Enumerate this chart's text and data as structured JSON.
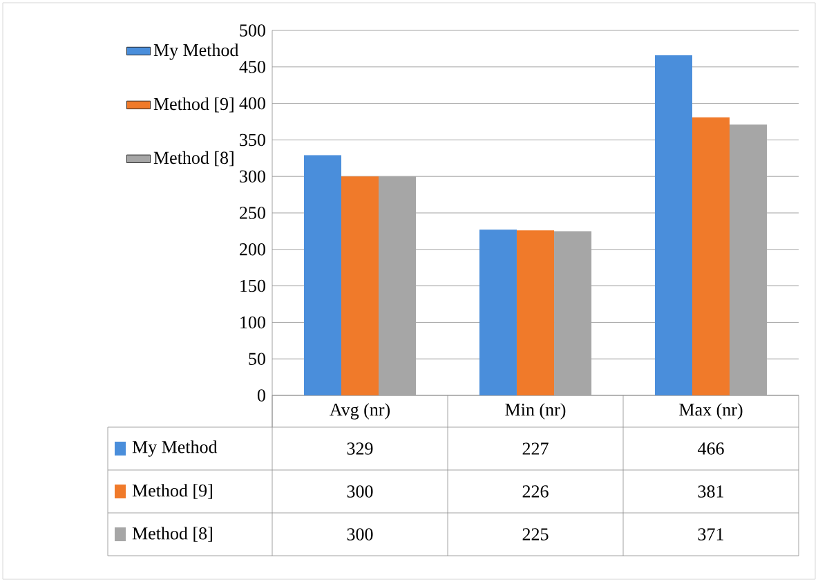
{
  "chart_data": {
    "type": "bar",
    "categories": [
      "Avg (nr)",
      "Min (nr)",
      "Max (nr)"
    ],
    "series": [
      {
        "name": "My Method",
        "color": "#4a8edb",
        "values": [
          329,
          227,
          466
        ]
      },
      {
        "name": "Method [9]",
        "color": "#f07a2a",
        "values": [
          300,
          226,
          381
        ]
      },
      {
        "name": "Method [8]",
        "color": "#a6a6a6",
        "values": [
          300,
          225,
          371
        ]
      }
    ],
    "ylim": [
      0,
      500
    ],
    "yticks": [
      0,
      50,
      100,
      150,
      200,
      250,
      300,
      350,
      400,
      450,
      500
    ],
    "grid": "y",
    "legend": "left",
    "data_labels": true
  }
}
